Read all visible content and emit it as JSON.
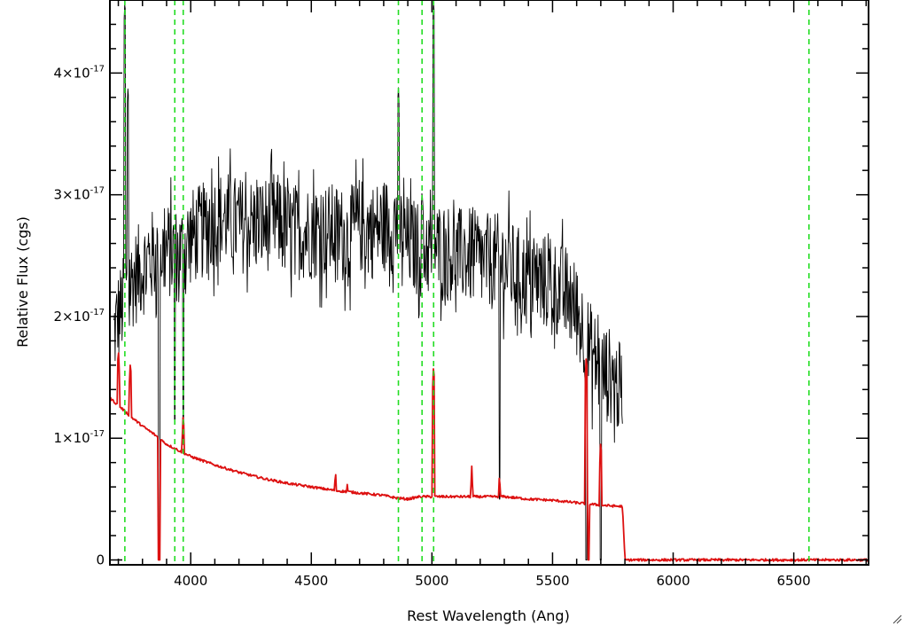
{
  "chart_data": {
    "type": "line",
    "xlabel": "Rest Wavelength (Ang)",
    "ylabel": "Relative Flux (cgs)",
    "xlim": [
      3665,
      6810
    ],
    "ylim": [
      -0.04,
      4.6
    ],
    "y_unit_exponent": "-17",
    "x_ticks": [
      "4000",
      "4500",
      "5000",
      "5500",
      "6000",
      "6500"
    ],
    "y_ticks": [
      {
        "value": 0,
        "mantissa": "0",
        "times": "",
        "exp": ""
      },
      {
        "value": 1,
        "mantissa": "1",
        "times": "×10",
        "exp": "-17"
      },
      {
        "value": 2,
        "mantissa": "2",
        "times": "×10",
        "exp": "-17"
      },
      {
        "value": 3,
        "mantissa": "3",
        "times": "×10",
        "exp": "-17"
      },
      {
        "value": 4,
        "mantissa": "4",
        "times": "×10",
        "exp": "-17"
      }
    ],
    "grid": false,
    "legend": "none",
    "colors": {
      "observed": "#000000",
      "model": "#dd1111",
      "lines": "#22dd22",
      "axes": "#000000"
    },
    "series": [
      {
        "style": "black spectrum",
        "x": [
          3680,
          3700,
          3720,
          3735,
          3760,
          3800,
          3850,
          3900,
          3950,
          4000,
          4050,
          4100,
          4150,
          4200,
          4250,
          4300,
          4350,
          4400,
          4450,
          4500,
          4550,
          4600,
          4650,
          4700,
          4750,
          4800,
          4850,
          4900,
          4950,
          5000,
          5050,
          5100,
          5150,
          5200,
          5250,
          5300,
          5350,
          5400,
          5450,
          5500,
          5550,
          5600,
          5650,
          5700,
          5750,
          5790
        ],
        "y": [
          1.85,
          2.0,
          2.1,
          2.2,
          2.3,
          2.4,
          2.5,
          2.55,
          2.5,
          2.65,
          2.7,
          2.8,
          2.8,
          2.75,
          2.75,
          2.75,
          2.8,
          2.7,
          2.7,
          2.7,
          2.7,
          2.7,
          2.65,
          2.75,
          2.7,
          2.75,
          2.75,
          2.6,
          2.55,
          2.55,
          2.55,
          2.5,
          2.5,
          2.45,
          2.45,
          2.45,
          2.35,
          2.3,
          2.3,
          2.25,
          2.2,
          2.05,
          1.75,
          1.55,
          1.5,
          1.35
        ],
        "noise_amplitude": 0.4,
        "emission_lines": [
          {
            "x": 3727,
            "peak": 4.6
          },
          {
            "x": 3740,
            "peak": 3.9
          },
          {
            "x": 3869,
            "peak": 4.6
          },
          {
            "x": 4861,
            "peak": 3.9
          },
          {
            "x": 4959,
            "peak": 3.05
          },
          {
            "x": 5007,
            "peak": 4.6
          }
        ],
        "absorption_features": [
          {
            "x": 3869,
            "min": 0.0
          },
          {
            "x": 3934,
            "min": 1.15
          },
          {
            "x": 3969,
            "min": 0.95
          },
          {
            "x": 5280,
            "min": 0.5
          },
          {
            "x": 5640,
            "min": 0.0
          },
          {
            "x": 5700,
            "min": 0.0
          }
        ]
      },
      {
        "style": "red spectrum",
        "x": [
          3665,
          3700,
          3750,
          3800,
          3850,
          3900,
          3950,
          4000,
          4100,
          4200,
          4300,
          4400,
          4500,
          4600,
          4700,
          4800,
          4850,
          4900,
          4950,
          5000,
          5100,
          5200,
          5300,
          5400,
          5500,
          5600,
          5700,
          5780,
          5790,
          5800,
          6810
        ],
        "y": [
          1.33,
          1.27,
          1.18,
          1.1,
          1.03,
          0.95,
          0.9,
          0.85,
          0.78,
          0.72,
          0.67,
          0.63,
          0.6,
          0.57,
          0.55,
          0.53,
          0.51,
          0.5,
          0.52,
          0.52,
          0.52,
          0.52,
          0.52,
          0.5,
          0.49,
          0.47,
          0.45,
          0.44,
          0.44,
          0.0,
          0.0
        ],
        "emission_lines": [
          {
            "x": 3700,
            "peak": 1.75
          },
          {
            "x": 3750,
            "peak": 1.65
          },
          {
            "x": 3869,
            "peak": 1.43
          },
          {
            "x": 3969,
            "peak": 1.22
          },
          {
            "x": 4600,
            "peak": 0.75
          },
          {
            "x": 4650,
            "peak": 0.67
          },
          {
            "x": 5007,
            "peak": 1.62
          },
          {
            "x": 5165,
            "peak": 0.77
          },
          {
            "x": 5280,
            "peak": 0.72
          },
          {
            "x": 5640,
            "peak": 1.7
          },
          {
            "x": 5700,
            "peak": 1.0
          }
        ],
        "absorption_features": [
          {
            "x": 3869,
            "min": 0.0
          },
          {
            "x": 5650,
            "min": 0.0
          }
        ]
      }
    ],
    "vertical_lines": [
      {
        "x": 3727,
        "style": "dashed",
        "color": "#22dd22"
      },
      {
        "x": 3934,
        "style": "dashed",
        "color": "#22dd22"
      },
      {
        "x": 3969,
        "style": "dashed",
        "color": "#22dd22"
      },
      {
        "x": 4861,
        "style": "dashed",
        "color": "#22dd22"
      },
      {
        "x": 4959,
        "style": "dashed",
        "color": "#22dd22"
      },
      {
        "x": 5007,
        "style": "dashed",
        "color": "#22dd22"
      },
      {
        "x": 6563,
        "style": "dashed",
        "color": "#22dd22"
      }
    ]
  }
}
